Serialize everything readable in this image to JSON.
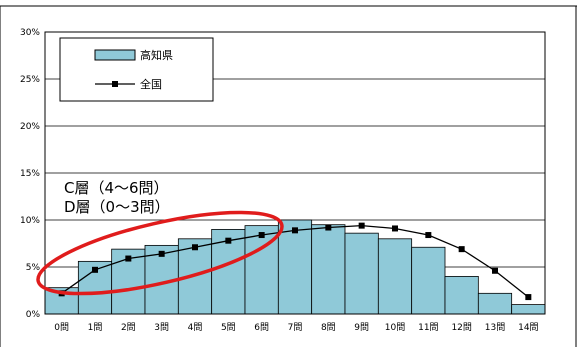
{
  "chart_data": {
    "type": "bar",
    "categories": [
      "0問",
      "1問",
      "2問",
      "3問",
      "4問",
      "5問",
      "6問",
      "7問",
      "8問",
      "9問",
      "10問",
      "11問",
      "12問",
      "13問",
      "14問"
    ],
    "series": [
      {
        "name": "高知県",
        "kind": "bar",
        "values": [
          2.8,
          5.6,
          6.9,
          7.3,
          8.0,
          9.0,
          9.4,
          10.0,
          9.5,
          8.6,
          8.0,
          7.1,
          4.0,
          2.2,
          1.0
        ]
      },
      {
        "name": "全国",
        "kind": "line",
        "values": [
          2.2,
          4.7,
          5.9,
          6.4,
          7.1,
          7.8,
          8.4,
          8.9,
          9.2,
          9.4,
          9.1,
          8.4,
          6.9,
          4.6,
          1.8
        ]
      }
    ],
    "ylim": [
      0,
      30
    ],
    "yticks": [
      "0%",
      "5%",
      "10%",
      "15%",
      "20%",
      "25%",
      "30%"
    ],
    "grid": true,
    "legend_position": "top-left",
    "annotations": [
      "C層（4～6問）",
      "D層（0～3問）"
    ],
    "colors": {
      "bar_fill": "#8fc9d8",
      "bar_stroke": "#000000",
      "line": "#000000",
      "ellipse": "#e01c1c"
    }
  }
}
